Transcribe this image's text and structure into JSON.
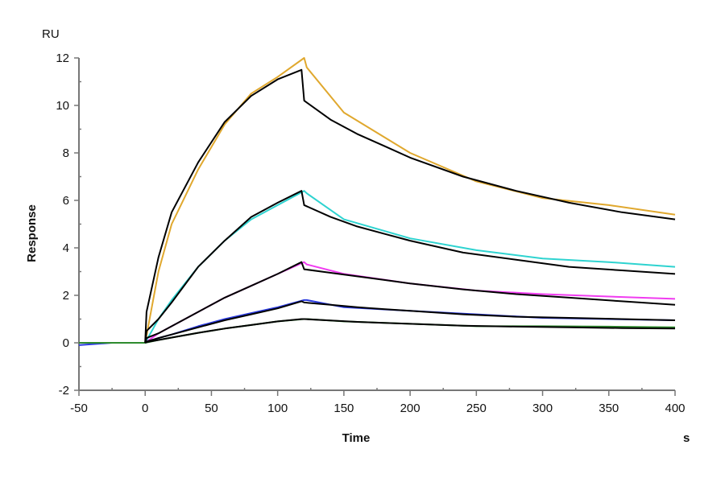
{
  "chart_data": {
    "type": "line",
    "title": "",
    "xlabel": "Time",
    "xunit": "s",
    "ylabel": "Response",
    "yunit": "RU",
    "xlim": [
      -50,
      400
    ],
    "ylim": [
      -2,
      12
    ],
    "xticks": [
      -50,
      0,
      50,
      100,
      150,
      200,
      250,
      300,
      350,
      400
    ],
    "yticks": [
      -2,
      0,
      2,
      4,
      6,
      8,
      10,
      12
    ],
    "grid": false,
    "legend": "none",
    "data_x": [
      -50,
      -25,
      0,
      10,
      20,
      40,
      60,
      80,
      100,
      120,
      122,
      150,
      200,
      250,
      300,
      350,
      400
    ],
    "fit_x": [
      0,
      1,
      10,
      20,
      40,
      60,
      80,
      100,
      118,
      120,
      140,
      160,
      180,
      200,
      240,
      280,
      320,
      360,
      400
    ],
    "fit_color": "#000000",
    "series": [
      {
        "color": "#e0a82e",
        "data": [
          0,
          0,
          0,
          3.0,
          5.0,
          7.3,
          9.2,
          10.5,
          11.2,
          12.0,
          11.6,
          9.7,
          8.0,
          6.8,
          6.1,
          5.8,
          5.4
        ],
        "fit": [
          0,
          1.3,
          3.6,
          5.5,
          7.6,
          9.3,
          10.4,
          11.1,
          11.5,
          10.2,
          9.4,
          8.8,
          8.3,
          7.8,
          7.0,
          6.4,
          5.9,
          5.5,
          5.2
        ]
      },
      {
        "color": "#2ed3d0",
        "data": [
          0,
          0,
          0,
          1.0,
          1.8,
          3.2,
          4.3,
          5.2,
          5.8,
          6.4,
          6.3,
          5.2,
          4.4,
          3.9,
          3.55,
          3.4,
          3.2
        ],
        "fit": [
          0,
          0.5,
          1.0,
          1.7,
          3.2,
          4.3,
          5.3,
          5.9,
          6.4,
          5.8,
          5.3,
          4.9,
          4.6,
          4.3,
          3.8,
          3.5,
          3.2,
          3.05,
          2.9
        ]
      },
      {
        "color": "#f03cf0",
        "data": [
          0,
          0,
          0,
          0.4,
          0.7,
          1.3,
          1.9,
          2.4,
          2.9,
          3.4,
          3.3,
          2.9,
          2.5,
          2.2,
          2.05,
          1.95,
          1.85
        ],
        "fit": [
          0,
          0.2,
          0.4,
          0.7,
          1.3,
          1.9,
          2.4,
          2.9,
          3.4,
          3.1,
          2.95,
          2.8,
          2.65,
          2.5,
          2.25,
          2.05,
          1.9,
          1.75,
          1.6
        ]
      },
      {
        "color": "#2a3adf",
        "data": [
          -0.1,
          0,
          0,
          0.2,
          0.35,
          0.7,
          1.0,
          1.25,
          1.5,
          1.8,
          1.8,
          1.5,
          1.35,
          1.2,
          1.05,
          1.0,
          0.95
        ],
        "fit": [
          0,
          0.05,
          0.2,
          0.35,
          0.65,
          0.95,
          1.2,
          1.45,
          1.75,
          1.7,
          1.6,
          1.5,
          1.42,
          1.35,
          1.2,
          1.1,
          1.05,
          1.0,
          0.95
        ]
      },
      {
        "color": "#2e8b2e",
        "data": [
          0,
          0,
          0,
          0.12,
          0.22,
          0.42,
          0.6,
          0.75,
          0.9,
          1.0,
          1.0,
          0.9,
          0.8,
          0.7,
          0.7,
          0.68,
          0.65
        ],
        "fit": [
          0,
          0.03,
          0.12,
          0.22,
          0.42,
          0.6,
          0.75,
          0.9,
          1.0,
          1.0,
          0.94,
          0.88,
          0.84,
          0.8,
          0.72,
          0.68,
          0.65,
          0.62,
          0.6
        ]
      }
    ]
  }
}
